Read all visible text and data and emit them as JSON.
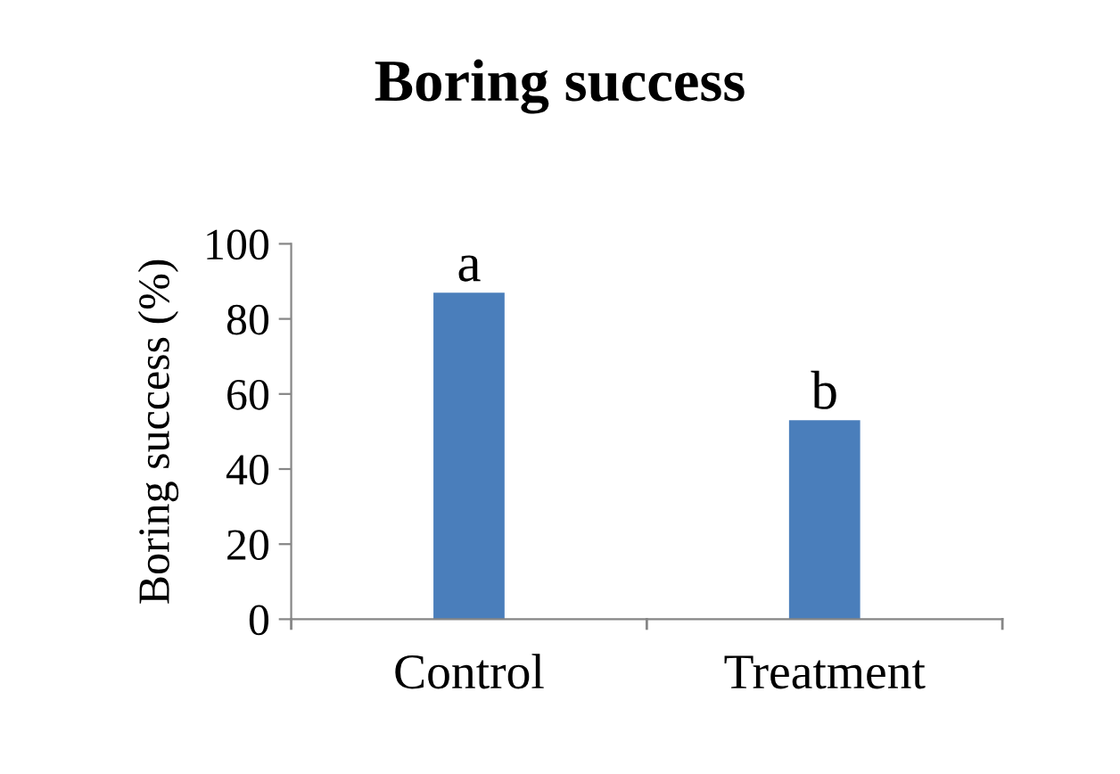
{
  "chart_data": {
    "type": "bar",
    "title": "Boring success",
    "ylabel": "Boring success (%)",
    "categories": [
      "Control",
      "Treatment"
    ],
    "values": [
      87,
      53
    ],
    "color": "#4a7ebb",
    "ylim": [
      0,
      100
    ],
    "yticks": [
      0,
      20,
      40,
      60,
      80,
      100
    ],
    "grid": false,
    "legend": false,
    "annotations": [
      {
        "text": "a",
        "x": "Control",
        "y": 87
      },
      {
        "text": "b",
        "x": "Treatment",
        "y": 53
      }
    ]
  }
}
